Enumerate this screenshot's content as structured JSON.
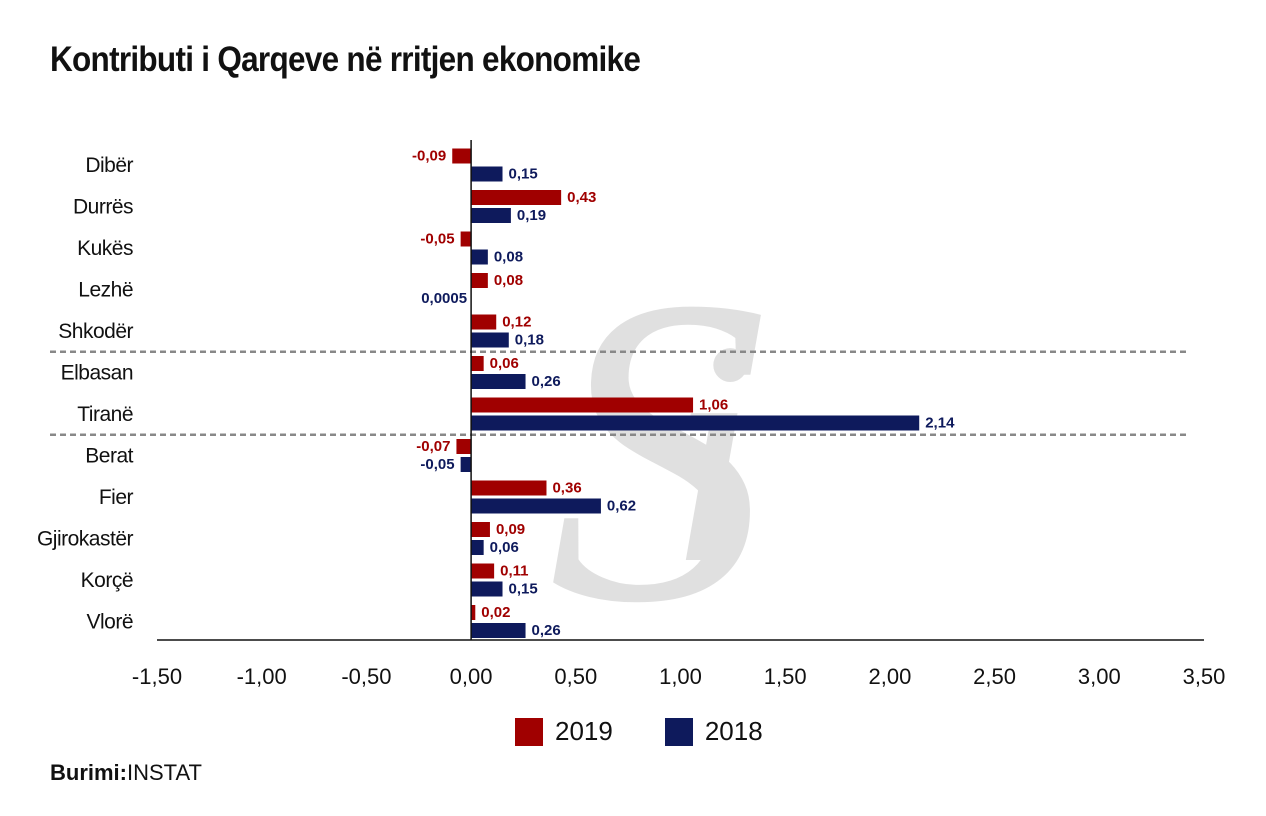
{
  "title": "Kontributi i Qarqeve në rritjen ekonomike",
  "source": {
    "label": "Burimi:",
    "value": "INSTAT"
  },
  "watermark": "Si",
  "legend": [
    {
      "name": "2019",
      "color": "#a00000"
    },
    {
      "name": "2018",
      "color": "#0e1a5c"
    }
  ],
  "chart_data": {
    "type": "bar",
    "orientation": "horizontal",
    "categories": [
      "Dibër",
      "Durrës",
      "Kukës",
      "Lezhë",
      "Shkodër",
      "Elbasan",
      "Tiranë",
      "Berat",
      "Fier",
      "Gjirokastër",
      "Korçë",
      "Vlorë"
    ],
    "series": [
      {
        "name": "2019",
        "color": "#a00000",
        "values": [
          -0.09,
          0.43,
          -0.05,
          0.08,
          0.12,
          0.06,
          1.06,
          -0.07,
          0.36,
          0.09,
          0.11,
          0.02
        ],
        "labels": [
          "-0,09",
          "0,43",
          "-0,05",
          "0,08",
          "0,12",
          "0,06",
          "1,06",
          "-0,07",
          "0,36",
          "0,09",
          "0,11",
          "0,02"
        ]
      },
      {
        "name": "2018",
        "color": "#0e1a5c",
        "values": [
          0.15,
          0.19,
          0.08,
          0.0005,
          0.18,
          0.26,
          2.14,
          -0.05,
          0.62,
          0.06,
          0.15,
          0.26
        ],
        "labels": [
          "0,15",
          "0,19",
          "0,08",
          "0,0005",
          "0,18",
          "0,26",
          "2,14",
          "-0,05",
          "0,62",
          "0,06",
          "0,15",
          "0,26"
        ]
      }
    ],
    "xlim": [
      -1.5,
      3.5
    ],
    "xticks": [
      -1.5,
      -1.0,
      -0.5,
      0.0,
      0.5,
      1.0,
      1.5,
      2.0,
      2.5,
      3.0,
      3.5
    ],
    "xtick_labels": [
      "-1,50",
      "-1,00",
      "-0,50",
      "0,00",
      "0,50",
      "1,00",
      "1,50",
      "2,00",
      "2,50",
      "3,00",
      "3,50"
    ],
    "group_separators_after": [
      "Shkodër",
      "Tiranë"
    ],
    "grid": false,
    "legend_position": "bottom"
  }
}
